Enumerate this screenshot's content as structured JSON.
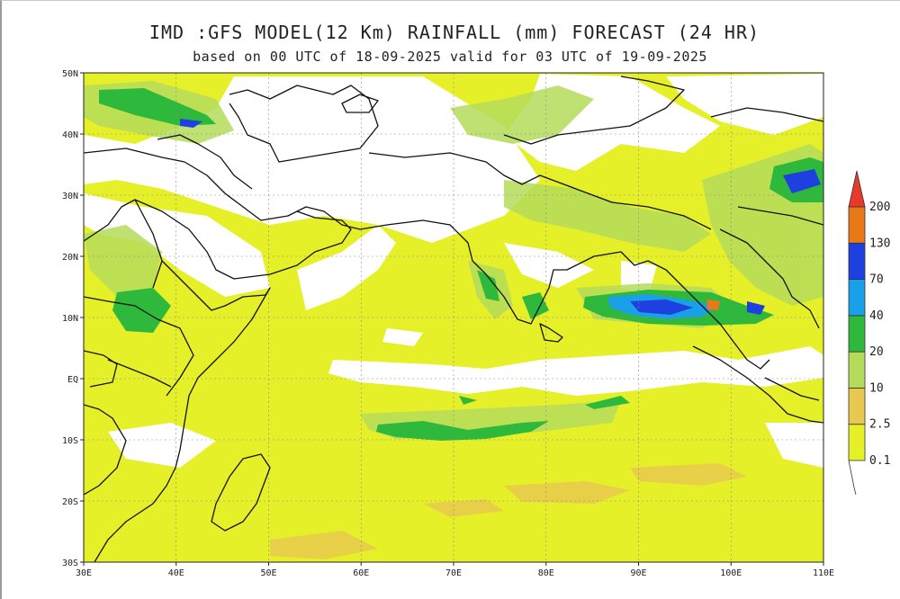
{
  "title": "IMD :GFS MODEL(12 Km) RAINFALL (mm) FORECAST (24 HR)",
  "subtitle": "based on 00 UTC of 18-09-2025 valid for 03 UTC of 19-09-2025",
  "map": {
    "lon_range": [
      30,
      110
    ],
    "lat_range": [
      -30,
      50
    ],
    "lon_ticks": [
      {
        "value": 30,
        "label": "30E"
      },
      {
        "value": 40,
        "label": "40E"
      },
      {
        "value": 50,
        "label": "50E"
      },
      {
        "value": 60,
        "label": "60E"
      },
      {
        "value": 70,
        "label": "70E"
      },
      {
        "value": 80,
        "label": "80E"
      },
      {
        "value": 90,
        "label": "90E"
      },
      {
        "value": 100,
        "label": "100E"
      },
      {
        "value": 110,
        "label": "110E"
      }
    ],
    "lat_ticks": [
      {
        "value": 50,
        "label": "50N"
      },
      {
        "value": 40,
        "label": "40N"
      },
      {
        "value": 30,
        "label": "30N"
      },
      {
        "value": 20,
        "label": "20N"
      },
      {
        "value": 10,
        "label": "10N"
      },
      {
        "value": 0,
        "label": "EQ"
      },
      {
        "value": -10,
        "label": "10S"
      },
      {
        "value": -20,
        "label": "20S"
      },
      {
        "value": -30,
        "label": "30S"
      }
    ],
    "gridlines": true
  },
  "legend": {
    "levels": [
      "0.1",
      "2.5",
      "10",
      "20",
      "40",
      "70",
      "130",
      "200"
    ],
    "colors": [
      "#e6f029",
      "#e8c850",
      "#b4dc5a",
      "#2eb83c",
      "#1aa0e8",
      "#1e40e0",
      "#e87818",
      "#e83a2a"
    ]
  }
}
